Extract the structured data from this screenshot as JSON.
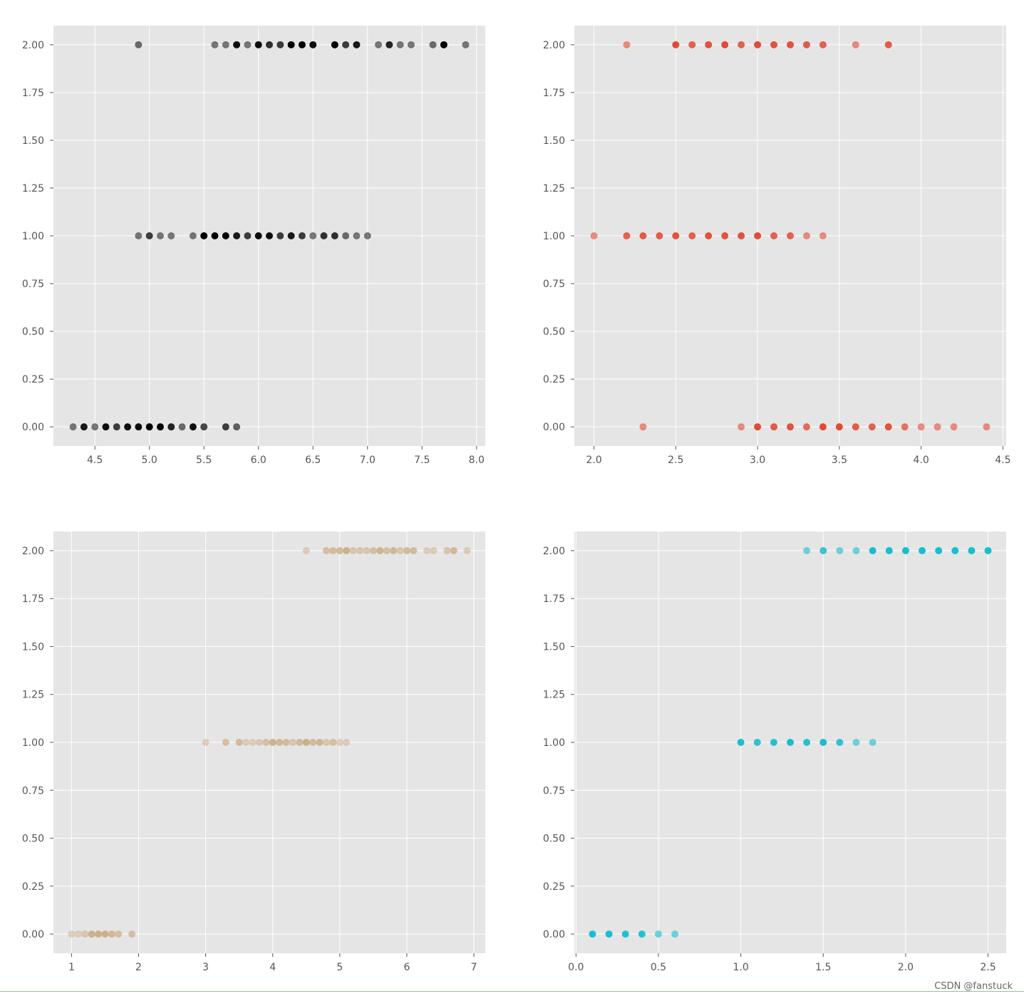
{
  "watermark": "CSDN @fanstuck",
  "style": {
    "plot_bg": "#e5e5e5",
    "grid": "#ffffff",
    "tick_color": "#555555"
  },
  "chart_data": [
    {
      "type": "scatter",
      "color": "#000000",
      "xlim": [
        4.12,
        8.08
      ],
      "ylim": [
        -0.1,
        2.1
      ],
      "xticks": [
        4.5,
        5.0,
        5.5,
        6.0,
        6.5,
        7.0,
        7.5,
        8.0
      ],
      "xtick_labels": [
        "4.5",
        "5.0",
        "5.5",
        "6.0",
        "6.5",
        "7.0",
        "7.5",
        "8.0"
      ],
      "yticks": [
        0,
        0.25,
        0.5,
        0.75,
        1.0,
        1.25,
        1.5,
        1.75,
        2.0
      ],
      "ytick_labels": [
        "0.00",
        "0.25",
        "0.50",
        "0.75",
        "1.00",
        "1.25",
        "1.50",
        "1.75",
        "2.00"
      ],
      "grid": true,
      "points": [
        {
          "x": 4.3,
          "y": 0,
          "a": 0.5
        },
        {
          "x": 4.4,
          "y": 0,
          "a": 0.9
        },
        {
          "x": 4.5,
          "y": 0,
          "a": 0.5
        },
        {
          "x": 4.6,
          "y": 0,
          "a": 0.95
        },
        {
          "x": 4.7,
          "y": 0,
          "a": 0.75
        },
        {
          "x": 4.8,
          "y": 0,
          "a": 0.95
        },
        {
          "x": 4.9,
          "y": 0,
          "a": 0.95
        },
        {
          "x": 5.0,
          "y": 0,
          "a": 1.0
        },
        {
          "x": 5.1,
          "y": 0,
          "a": 1.0
        },
        {
          "x": 5.2,
          "y": 0,
          "a": 0.85
        },
        {
          "x": 5.3,
          "y": 0,
          "a": 0.55
        },
        {
          "x": 5.4,
          "y": 0,
          "a": 0.95
        },
        {
          "x": 5.5,
          "y": 0,
          "a": 0.7
        },
        {
          "x": 5.7,
          "y": 0,
          "a": 0.75
        },
        {
          "x": 5.8,
          "y": 0,
          "a": 0.6
        },
        {
          "x": 4.9,
          "y": 1,
          "a": 0.5
        },
        {
          "x": 5.0,
          "y": 1,
          "a": 0.75
        },
        {
          "x": 5.1,
          "y": 1,
          "a": 0.5
        },
        {
          "x": 5.2,
          "y": 1,
          "a": 0.5
        },
        {
          "x": 5.4,
          "y": 1,
          "a": 0.5
        },
        {
          "x": 5.5,
          "y": 1,
          "a": 1.0
        },
        {
          "x": 5.6,
          "y": 1,
          "a": 1.0
        },
        {
          "x": 5.7,
          "y": 1,
          "a": 1.0
        },
        {
          "x": 5.8,
          "y": 1,
          "a": 0.9
        },
        {
          "x": 5.9,
          "y": 1,
          "a": 0.75
        },
        {
          "x": 6.0,
          "y": 1,
          "a": 0.95
        },
        {
          "x": 6.1,
          "y": 1,
          "a": 0.95
        },
        {
          "x": 6.2,
          "y": 1,
          "a": 0.75
        },
        {
          "x": 6.3,
          "y": 1,
          "a": 0.9
        },
        {
          "x": 6.4,
          "y": 1,
          "a": 0.75
        },
        {
          "x": 6.5,
          "y": 1,
          "a": 0.5
        },
        {
          "x": 6.6,
          "y": 1,
          "a": 0.8
        },
        {
          "x": 6.7,
          "y": 1,
          "a": 0.8
        },
        {
          "x": 6.8,
          "y": 1,
          "a": 0.55
        },
        {
          "x": 6.9,
          "y": 1,
          "a": 0.5
        },
        {
          "x": 7.0,
          "y": 1,
          "a": 0.5
        },
        {
          "x": 4.9,
          "y": 2,
          "a": 0.55
        },
        {
          "x": 5.6,
          "y": 2,
          "a": 0.5
        },
        {
          "x": 5.7,
          "y": 2,
          "a": 0.5
        },
        {
          "x": 5.8,
          "y": 2,
          "a": 0.95
        },
        {
          "x": 5.9,
          "y": 2,
          "a": 0.5
        },
        {
          "x": 6.0,
          "y": 2,
          "a": 0.95
        },
        {
          "x": 6.1,
          "y": 2,
          "a": 0.8
        },
        {
          "x": 6.2,
          "y": 2,
          "a": 0.75
        },
        {
          "x": 6.3,
          "y": 2,
          "a": 1.0
        },
        {
          "x": 6.4,
          "y": 2,
          "a": 1.0
        },
        {
          "x": 6.5,
          "y": 2,
          "a": 0.95
        },
        {
          "x": 6.7,
          "y": 2,
          "a": 1.0
        },
        {
          "x": 6.8,
          "y": 2,
          "a": 0.75
        },
        {
          "x": 6.9,
          "y": 2,
          "a": 0.9
        },
        {
          "x": 7.1,
          "y": 2,
          "a": 0.5
        },
        {
          "x": 7.2,
          "y": 2,
          "a": 0.85
        },
        {
          "x": 7.3,
          "y": 2,
          "a": 0.5
        },
        {
          "x": 7.4,
          "y": 2,
          "a": 0.5
        },
        {
          "x": 7.6,
          "y": 2,
          "a": 0.55
        },
        {
          "x": 7.7,
          "y": 2,
          "a": 1.0
        },
        {
          "x": 7.9,
          "y": 2,
          "a": 0.5
        }
      ]
    },
    {
      "type": "scatter",
      "color": "#e24a33",
      "xlim": [
        1.88,
        4.52
      ],
      "ylim": [
        -0.1,
        2.1
      ],
      "xticks": [
        2.0,
        2.5,
        3.0,
        3.5,
        4.0,
        4.5
      ],
      "xtick_labels": [
        "2.0",
        "2.5",
        "3.0",
        "3.5",
        "4.0",
        "4.5"
      ],
      "yticks": [
        0,
        0.25,
        0.5,
        0.75,
        1.0,
        1.25,
        1.5,
        1.75,
        2.0
      ],
      "ytick_labels": [
        "0.00",
        "0.25",
        "0.50",
        "0.75",
        "1.00",
        "1.25",
        "1.50",
        "1.75",
        "2.00"
      ],
      "grid": true,
      "points": [
        {
          "x": 2.3,
          "y": 0,
          "a": 0.6
        },
        {
          "x": 2.9,
          "y": 0,
          "a": 0.6
        },
        {
          "x": 3.0,
          "y": 0,
          "a": 1.0
        },
        {
          "x": 3.1,
          "y": 0,
          "a": 0.9
        },
        {
          "x": 3.2,
          "y": 0,
          "a": 0.95
        },
        {
          "x": 3.3,
          "y": 0,
          "a": 0.8
        },
        {
          "x": 3.4,
          "y": 0,
          "a": 1.0
        },
        {
          "x": 3.5,
          "y": 0,
          "a": 1.0
        },
        {
          "x": 3.6,
          "y": 0,
          "a": 0.9
        },
        {
          "x": 3.7,
          "y": 0,
          "a": 0.85
        },
        {
          "x": 3.8,
          "y": 0,
          "a": 0.95
        },
        {
          "x": 3.9,
          "y": 0,
          "a": 0.75
        },
        {
          "x": 4.0,
          "y": 0,
          "a": 0.6
        },
        {
          "x": 4.1,
          "y": 0,
          "a": 0.6
        },
        {
          "x": 4.2,
          "y": 0,
          "a": 0.6
        },
        {
          "x": 4.4,
          "y": 0,
          "a": 0.6
        },
        {
          "x": 2.0,
          "y": 1,
          "a": 0.6
        },
        {
          "x": 2.2,
          "y": 1,
          "a": 0.85
        },
        {
          "x": 2.3,
          "y": 1,
          "a": 0.9
        },
        {
          "x": 2.4,
          "y": 1,
          "a": 0.9
        },
        {
          "x": 2.5,
          "y": 1,
          "a": 0.95
        },
        {
          "x": 2.6,
          "y": 1,
          "a": 0.85
        },
        {
          "x": 2.7,
          "y": 1,
          "a": 0.95
        },
        {
          "x": 2.8,
          "y": 1,
          "a": 0.95
        },
        {
          "x": 2.9,
          "y": 1,
          "a": 0.95
        },
        {
          "x": 3.0,
          "y": 1,
          "a": 1.0
        },
        {
          "x": 3.1,
          "y": 1,
          "a": 0.85
        },
        {
          "x": 3.2,
          "y": 1,
          "a": 0.85
        },
        {
          "x": 3.3,
          "y": 1,
          "a": 0.6
        },
        {
          "x": 3.4,
          "y": 1,
          "a": 0.6
        },
        {
          "x": 2.2,
          "y": 2,
          "a": 0.6
        },
        {
          "x": 2.5,
          "y": 2,
          "a": 1.0
        },
        {
          "x": 2.6,
          "y": 2,
          "a": 0.85
        },
        {
          "x": 2.7,
          "y": 2,
          "a": 0.95
        },
        {
          "x": 2.8,
          "y": 2,
          "a": 1.0
        },
        {
          "x": 2.9,
          "y": 2,
          "a": 0.85
        },
        {
          "x": 3.0,
          "y": 2,
          "a": 1.0
        },
        {
          "x": 3.1,
          "y": 2,
          "a": 0.95
        },
        {
          "x": 3.2,
          "y": 2,
          "a": 0.95
        },
        {
          "x": 3.3,
          "y": 2,
          "a": 0.9
        },
        {
          "x": 3.4,
          "y": 2,
          "a": 0.85
        },
        {
          "x": 3.6,
          "y": 2,
          "a": 0.6
        },
        {
          "x": 3.8,
          "y": 2,
          "a": 0.9
        }
      ]
    },
    {
      "type": "scatter",
      "color": "#c9a77c",
      "xlim": [
        0.73,
        7.17
      ],
      "ylim": [
        -0.1,
        2.1
      ],
      "xticks": [
        1,
        2,
        3,
        4,
        5,
        6,
        7
      ],
      "xtick_labels": [
        "1",
        "2",
        "3",
        "4",
        "5",
        "6",
        "7"
      ],
      "yticks": [
        0,
        0.25,
        0.5,
        0.75,
        1.0,
        1.25,
        1.5,
        1.75,
        2.0
      ],
      "ytick_labels": [
        "0.00",
        "0.25",
        "0.50",
        "0.75",
        "1.00",
        "1.25",
        "1.50",
        "1.75",
        "2.00"
      ],
      "grid": true,
      "points": [
        {
          "x": 1.0,
          "y": 0,
          "a": 0.45
        },
        {
          "x": 1.1,
          "y": 0,
          "a": 0.45
        },
        {
          "x": 1.2,
          "y": 0,
          "a": 0.55
        },
        {
          "x": 1.3,
          "y": 0,
          "a": 0.85
        },
        {
          "x": 1.4,
          "y": 0,
          "a": 0.9
        },
        {
          "x": 1.5,
          "y": 0,
          "a": 0.9
        },
        {
          "x": 1.6,
          "y": 0,
          "a": 0.75
        },
        {
          "x": 1.7,
          "y": 0,
          "a": 0.65
        },
        {
          "x": 1.9,
          "y": 0,
          "a": 0.65
        },
        {
          "x": 3.0,
          "y": 1,
          "a": 0.45
        },
        {
          "x": 3.3,
          "y": 1,
          "a": 0.65
        },
        {
          "x": 3.5,
          "y": 1,
          "a": 0.7
        },
        {
          "x": 3.6,
          "y": 1,
          "a": 0.45
        },
        {
          "x": 3.7,
          "y": 1,
          "a": 0.45
        },
        {
          "x": 3.8,
          "y": 1,
          "a": 0.5
        },
        {
          "x": 3.9,
          "y": 1,
          "a": 0.65
        },
        {
          "x": 4.0,
          "y": 1,
          "a": 0.85
        },
        {
          "x": 4.1,
          "y": 1,
          "a": 0.75
        },
        {
          "x": 4.2,
          "y": 1,
          "a": 0.7
        },
        {
          "x": 4.3,
          "y": 1,
          "a": 0.55
        },
        {
          "x": 4.4,
          "y": 1,
          "a": 0.7
        },
        {
          "x": 4.5,
          "y": 1,
          "a": 0.9
        },
        {
          "x": 4.6,
          "y": 1,
          "a": 0.7
        },
        {
          "x": 4.7,
          "y": 1,
          "a": 0.8
        },
        {
          "x": 4.8,
          "y": 1,
          "a": 0.55
        },
        {
          "x": 4.9,
          "y": 1,
          "a": 0.65
        },
        {
          "x": 5.0,
          "y": 1,
          "a": 0.45
        },
        {
          "x": 5.1,
          "y": 1,
          "a": 0.45
        },
        {
          "x": 4.5,
          "y": 2,
          "a": 0.45
        },
        {
          "x": 4.8,
          "y": 2,
          "a": 0.65
        },
        {
          "x": 4.9,
          "y": 2,
          "a": 0.7
        },
        {
          "x": 5.0,
          "y": 2,
          "a": 0.75
        },
        {
          "x": 5.1,
          "y": 2,
          "a": 0.85
        },
        {
          "x": 5.2,
          "y": 2,
          "a": 0.55
        },
        {
          "x": 5.3,
          "y": 2,
          "a": 0.55
        },
        {
          "x": 5.4,
          "y": 2,
          "a": 0.55
        },
        {
          "x": 5.5,
          "y": 2,
          "a": 0.65
        },
        {
          "x": 5.6,
          "y": 2,
          "a": 0.8
        },
        {
          "x": 5.7,
          "y": 2,
          "a": 0.65
        },
        {
          "x": 5.8,
          "y": 2,
          "a": 0.75
        },
        {
          "x": 5.9,
          "y": 2,
          "a": 0.55
        },
        {
          "x": 6.0,
          "y": 2,
          "a": 0.7
        },
        {
          "x": 6.1,
          "y": 2,
          "a": 0.7
        },
        {
          "x": 6.3,
          "y": 2,
          "a": 0.45
        },
        {
          "x": 6.4,
          "y": 2,
          "a": 0.45
        },
        {
          "x": 6.6,
          "y": 2,
          "a": 0.55
        },
        {
          "x": 6.7,
          "y": 2,
          "a": 0.75
        },
        {
          "x": 6.9,
          "y": 2,
          "a": 0.45
        }
      ]
    },
    {
      "type": "scatter",
      "color": "#17becf",
      "xlim": [
        -0.01,
        2.61
      ],
      "ylim": [
        -0.1,
        2.1
      ],
      "xticks": [
        0.0,
        0.5,
        1.0,
        1.5,
        2.0,
        2.5
      ],
      "xtick_labels": [
        "0.0",
        "0.5",
        "1.0",
        "1.5",
        "2.0",
        "2.5"
      ],
      "yticks": [
        0,
        0.25,
        0.5,
        0.75,
        1.0,
        1.25,
        1.5,
        1.75,
        2.0
      ],
      "ytick_labels": [
        "0.00",
        "0.25",
        "0.50",
        "0.75",
        "1.00",
        "1.25",
        "1.50",
        "1.75",
        "2.00"
      ],
      "grid": true,
      "points": [
        {
          "x": 0.1,
          "y": 0,
          "a": 1.0
        },
        {
          "x": 0.2,
          "y": 0,
          "a": 1.0
        },
        {
          "x": 0.3,
          "y": 0,
          "a": 0.95
        },
        {
          "x": 0.4,
          "y": 0,
          "a": 0.95
        },
        {
          "x": 0.5,
          "y": 0,
          "a": 0.6
        },
        {
          "x": 0.6,
          "y": 0,
          "a": 0.6
        },
        {
          "x": 1.0,
          "y": 1,
          "a": 1.0
        },
        {
          "x": 1.1,
          "y": 1,
          "a": 0.9
        },
        {
          "x": 1.2,
          "y": 1,
          "a": 0.95
        },
        {
          "x": 1.3,
          "y": 1,
          "a": 1.0
        },
        {
          "x": 1.4,
          "y": 1,
          "a": 0.95
        },
        {
          "x": 1.5,
          "y": 1,
          "a": 1.0
        },
        {
          "x": 1.6,
          "y": 1,
          "a": 0.9
        },
        {
          "x": 1.7,
          "y": 1,
          "a": 0.6
        },
        {
          "x": 1.8,
          "y": 1,
          "a": 0.6
        },
        {
          "x": 1.4,
          "y": 2,
          "a": 0.6
        },
        {
          "x": 1.5,
          "y": 2,
          "a": 0.85
        },
        {
          "x": 1.6,
          "y": 2,
          "a": 0.6
        },
        {
          "x": 1.7,
          "y": 2,
          "a": 0.6
        },
        {
          "x": 1.8,
          "y": 2,
          "a": 1.0
        },
        {
          "x": 1.9,
          "y": 2,
          "a": 1.0
        },
        {
          "x": 2.0,
          "y": 2,
          "a": 1.0
        },
        {
          "x": 2.1,
          "y": 2,
          "a": 1.0
        },
        {
          "x": 2.2,
          "y": 2,
          "a": 1.0
        },
        {
          "x": 2.3,
          "y": 2,
          "a": 1.0
        },
        {
          "x": 2.4,
          "y": 2,
          "a": 1.0
        },
        {
          "x": 2.5,
          "y": 2,
          "a": 1.0
        }
      ]
    }
  ]
}
